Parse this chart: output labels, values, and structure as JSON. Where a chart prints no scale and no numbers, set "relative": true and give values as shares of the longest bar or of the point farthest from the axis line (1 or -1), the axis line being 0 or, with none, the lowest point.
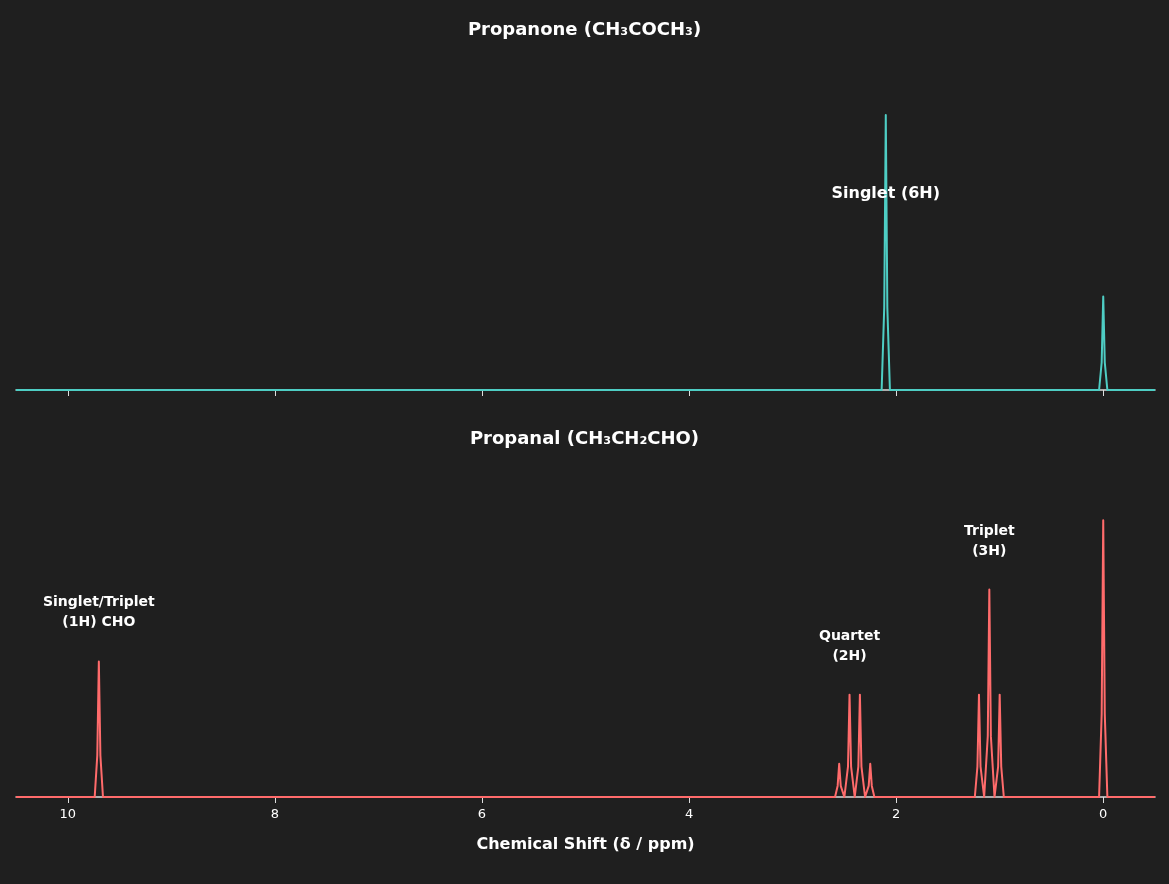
{
  "chart_data": [
    {
      "type": "line",
      "title": "Propanone (CH₃COCH₃)",
      "relative": true,
      "marker": "none",
      "tick_labels": false,
      "color": "#4ecdc4",
      "xlim": [
        10.5,
        -0.5
      ],
      "xticks": [
        10,
        8,
        6,
        4,
        2,
        0
      ],
      "x": [
        10.5,
        2.14,
        2.115,
        2.1,
        2.085,
        2.06,
        0.04,
        0.015,
        0,
        -0.015,
        -0.04,
        -0.5
      ],
      "values": [
        0,
        0,
        0.3,
        1,
        0.3,
        0,
        0,
        0.1,
        0.34,
        0.1,
        0,
        0
      ],
      "annotations": [
        {
          "text": "Singlet (6H)",
          "x": 2.1,
          "y": 0.72
        }
      ]
    },
    {
      "type": "line",
      "title": "Propanal (CH₃CH₂CHO)",
      "xlabel": "Chemical Shift (δ / ppm)",
      "relative": true,
      "marker": "none",
      "color": "#ff6b6b",
      "xlim": [
        10.5,
        -0.5
      ],
      "xticks": [
        10,
        8,
        6,
        4,
        2,
        0
      ],
      "x": [
        10.5,
        9.74,
        9.715,
        9.7,
        9.685,
        9.66,
        2.59,
        2.565,
        2.55,
        2.535,
        2.5,
        2.465,
        2.45,
        2.435,
        2.4,
        2.365,
        2.35,
        2.335,
        2.3,
        2.265,
        2.25,
        2.235,
        2.21,
        1.24,
        1.215,
        1.2,
        1.185,
        1.15,
        1.115,
        1.1,
        1.085,
        1.05,
        1.015,
        1.0,
        0.985,
        0.96,
        0.04,
        0.015,
        0,
        -0.015,
        -0.04,
        -0.5
      ],
      "values": [
        0,
        0,
        0.15,
        0.49,
        0.15,
        0,
        0,
        0.04,
        0.12,
        0.04,
        0,
        0.11,
        0.37,
        0.11,
        0,
        0.11,
        0.37,
        0.11,
        0,
        0.04,
        0.12,
        0.04,
        0,
        0,
        0.11,
        0.37,
        0.11,
        0,
        0.22,
        0.75,
        0.22,
        0,
        0.11,
        0.37,
        0.11,
        0,
        0,
        0.3,
        1,
        0.3,
        0,
        0
      ],
      "annotations": [
        {
          "text": "Singlet/Triplet\n(1H) CHO",
          "x": 9.7,
          "y": 0.49
        },
        {
          "text": "Quartet\n(2H)",
          "x": 2.45,
          "y": 0.37
        },
        {
          "text": "Triplet\n(3H)",
          "x": 1.1,
          "y": 0.75
        }
      ]
    }
  ]
}
